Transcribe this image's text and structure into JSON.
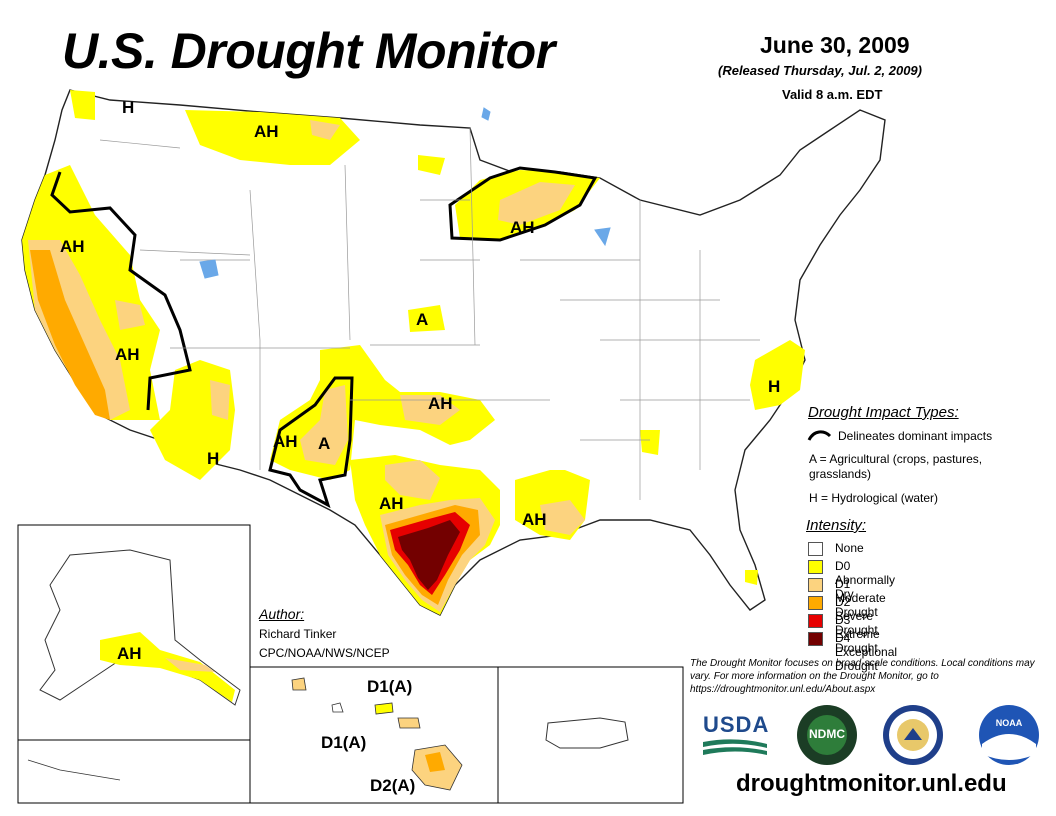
{
  "header": {
    "title": "U.S. Drought Monitor",
    "date": "June 30, 2009",
    "released": "(Released Thursday, Jul. 2, 2009)",
    "valid": "Valid 8 a.m. EDT"
  },
  "map_labels": {
    "pnw_h": "H",
    "north_rockies_ah": "AH",
    "ca_north_ah": "AH",
    "ca_central_ah": "AH",
    "kansas_a": "A",
    "az_h": "H",
    "nm_ah": "AH",
    "nm_a": "A",
    "ok_ah": "AH",
    "tx_ah": "AH",
    "la_ah": "AH",
    "mn_ah": "AH",
    "nc_h": "H",
    "ak_ah": "AH",
    "hi_d1_north": "D1(A)",
    "hi_d1_west": "D1(A)",
    "hi_d2": "D2(A)"
  },
  "legend": {
    "impact_title": "Drought Impact Types:",
    "delineates": "Delineates dominant impacts",
    "a_def": "A = Agricultural (crops, pastures, grasslands)",
    "h_def": "H = Hydrological (water)",
    "intensity_title": "Intensity:",
    "levels": [
      {
        "label": "None",
        "color": "#ffffff"
      },
      {
        "label": "D0 Abnormally Dry",
        "color": "#ffff00"
      },
      {
        "label": "D1 Moderate Drought",
        "color": "#fcd37f"
      },
      {
        "label": "D2 Severe Drought",
        "color": "#ffaa00"
      },
      {
        "label": "D3 Extreme Drought",
        "color": "#e60000"
      },
      {
        "label": "D4 Exceptional Drought",
        "color": "#730000"
      }
    ]
  },
  "author": {
    "heading": "Author:",
    "name": "Richard Tinker",
    "org": "CPC/NOAA/NWS/NCEP"
  },
  "footnote": "The Drought Monitor focuses on broad-scale conditions. Local conditions may vary. For more information on the Drought Monitor, go to https://droughtmonitor.unl.edu/About.aspx",
  "logos": {
    "usda": "USDA",
    "ndmc": "NDMC",
    "noaa": "NOAA"
  },
  "url": "droughtmonitor.unl.edu",
  "colors": {
    "d0": "#ffff00",
    "d1": "#fcd37f",
    "d2": "#ffaa00",
    "d3": "#e60000",
    "d4": "#730000",
    "water": "#6aa8e8"
  }
}
